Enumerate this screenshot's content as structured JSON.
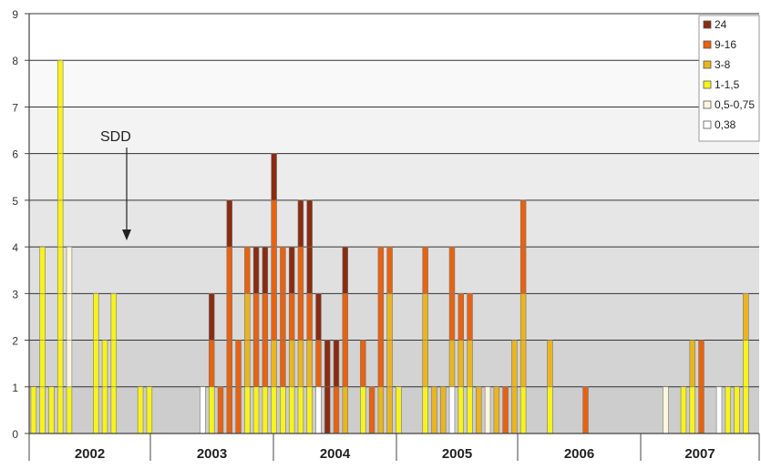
{
  "chart_data": {
    "type": "bar",
    "stacked": true,
    "ylim": [
      0,
      9
    ],
    "y_ticks": [
      "0",
      "1",
      "2",
      "3",
      "4",
      "5",
      "6",
      "7",
      "8",
      "9"
    ],
    "years": [
      "2002",
      "2003",
      "2004",
      "2005",
      "2006",
      "2007"
    ],
    "annotation": "SDD",
    "grid": true,
    "legend_position": "top-right",
    "series": [
      {
        "name": "24",
        "color": "#8b2b10"
      },
      {
        "name": "9-16",
        "color": "#e8620f"
      },
      {
        "name": "3-8",
        "color": "#eab51f"
      },
      {
        "name": "1-1,5",
        "color": "#f7f31d"
      },
      {
        "name": "0,5-0,75",
        "color": "#fbf6dc"
      },
      {
        "name": "0,38",
        "color": "#ffffff"
      }
    ],
    "bars": [
      [
        0,
        0,
        0,
        1,
        0,
        0
      ],
      [
        0,
        0,
        0,
        4,
        0,
        0
      ],
      [
        0,
        0,
        0,
        1,
        0,
        0
      ],
      [
        0,
        0,
        0,
        8,
        0,
        0
      ],
      [
        0,
        0,
        0,
        1,
        3,
        0
      ],
      [
        0,
        0,
        0,
        0,
        0,
        0
      ],
      [
        0,
        0,
        0,
        0,
        0,
        0
      ],
      [
        0,
        0,
        0,
        3,
        0,
        0
      ],
      [
        0,
        0,
        0,
        2,
        0,
        0
      ],
      [
        0,
        0,
        0,
        3,
        0,
        0
      ],
      [
        0,
        0,
        0,
        0,
        0,
        0
      ],
      [
        0,
        0,
        0,
        0,
        0,
        0
      ],
      [
        0,
        0,
        0,
        1,
        0,
        0
      ],
      [
        0,
        0,
        0,
        1,
        0,
        0
      ],
      [
        0,
        0,
        0,
        0,
        0,
        0
      ],
      [
        0,
        0,
        0,
        0,
        0,
        0
      ],
      [
        0,
        0,
        0,
        0,
        0,
        0
      ],
      [
        0,
        0,
        0,
        0,
        0,
        0
      ],
      [
        0,
        0,
        0,
        0,
        0,
        0
      ],
      [
        0,
        0,
        0,
        0,
        0,
        1
      ],
      [
        1,
        1,
        0,
        1,
        0,
        0
      ],
      [
        0,
        1,
        0,
        0,
        0,
        0
      ],
      [
        1,
        4,
        0,
        0,
        0,
        0
      ],
      [
        0,
        2,
        0,
        0,
        0,
        0
      ],
      [
        0,
        1,
        2,
        1,
        0,
        0
      ],
      [
        1,
        2,
        0,
        1,
        0,
        0
      ],
      [
        1,
        2,
        0,
        1,
        0,
        0
      ],
      [
        1,
        3,
        1,
        1,
        0,
        0
      ],
      [
        0,
        3,
        0,
        1,
        0,
        0
      ],
      [
        1,
        1,
        1,
        1,
        0,
        0
      ],
      [
        1,
        2,
        1,
        1,
        0,
        0
      ],
      [
        2,
        1,
        1,
        1,
        0,
        0
      ],
      [
        1,
        1,
        0,
        0,
        0,
        1
      ],
      [
        2,
        0,
        0,
        0,
        0,
        0
      ],
      [
        1,
        1,
        0,
        0,
        0,
        0
      ],
      [
        1,
        2,
        1,
        0,
        0,
        0
      ],
      [
        0,
        0,
        0,
        0,
        0,
        0
      ],
      [
        0,
        1,
        0,
        1,
        0,
        0
      ],
      [
        0,
        1,
        0,
        0,
        0,
        0
      ],
      [
        0,
        3,
        1,
        0,
        0,
        0
      ],
      [
        0,
        1,
        3,
        0,
        0,
        0
      ],
      [
        0,
        0,
        0,
        1,
        0,
        0
      ],
      [
        0,
        0,
        0,
        0,
        0,
        0
      ],
      [
        0,
        0,
        0,
        0,
        0,
        0
      ],
      [
        0,
        1,
        2,
        1,
        0,
        0
      ],
      [
        0,
        0,
        1,
        0,
        0,
        0
      ],
      [
        0,
        0,
        1,
        0,
        0,
        0
      ],
      [
        0,
        2,
        1,
        0,
        0,
        1
      ],
      [
        0,
        1,
        1,
        1,
        0,
        0
      ],
      [
        0,
        1,
        1,
        1,
        0,
        0
      ],
      [
        0,
        0,
        1,
        0,
        0,
        0
      ],
      [
        0,
        0,
        0,
        0,
        1,
        0
      ],
      [
        0,
        0,
        1,
        0,
        0,
        0
      ],
      [
        0,
        1,
        0,
        0,
        0,
        0
      ],
      [
        0,
        0,
        2,
        0,
        0,
        0
      ],
      [
        0,
        2,
        2,
        1,
        0,
        0
      ],
      [
        0,
        0,
        0,
        0,
        0,
        0
      ],
      [
        0,
        0,
        0,
        0,
        0,
        0
      ],
      [
        0,
        0,
        1,
        1,
        0,
        0
      ],
      [
        0,
        0,
        0,
        0,
        0,
        0
      ],
      [
        0,
        0,
        0,
        0,
        0,
        0
      ],
      [
        0,
        0,
        0,
        0,
        0,
        0
      ],
      [
        0,
        1,
        0,
        0,
        0,
        0
      ],
      [
        0,
        0,
        0,
        0,
        0,
        0
      ],
      [
        0,
        0,
        0,
        0,
        0,
        0
      ],
      [
        0,
        0,
        0,
        0,
        0,
        0
      ],
      [
        0,
        0,
        0,
        0,
        0,
        0
      ],
      [
        0,
        0,
        0,
        0,
        0,
        0
      ],
      [
        0,
        0,
        0,
        0,
        0,
        0
      ],
      [
        0,
        0,
        0,
        0,
        0,
        0
      ],
      [
        0,
        0,
        0,
        0,
        0,
        0
      ],
      [
        0,
        0,
        0,
        0,
        1,
        0
      ],
      [
        0,
        0,
        0,
        0,
        0,
        0
      ],
      [
        0,
        0,
        0,
        1,
        0,
        0
      ],
      [
        0,
        0,
        1,
        1,
        0,
        0
      ],
      [
        0,
        2,
        0,
        0,
        0,
        0
      ],
      [
        0,
        0,
        0,
        0,
        0,
        0
      ],
      [
        0,
        0,
        0,
        0,
        0,
        1
      ],
      [
        0,
        0,
        0,
        1,
        0,
        0
      ],
      [
        0,
        0,
        0,
        1,
        0,
        0
      ],
      [
        0,
        0,
        1,
        2,
        0,
        0
      ],
      [
        0,
        0,
        0,
        0,
        0,
        0
      ]
    ]
  }
}
